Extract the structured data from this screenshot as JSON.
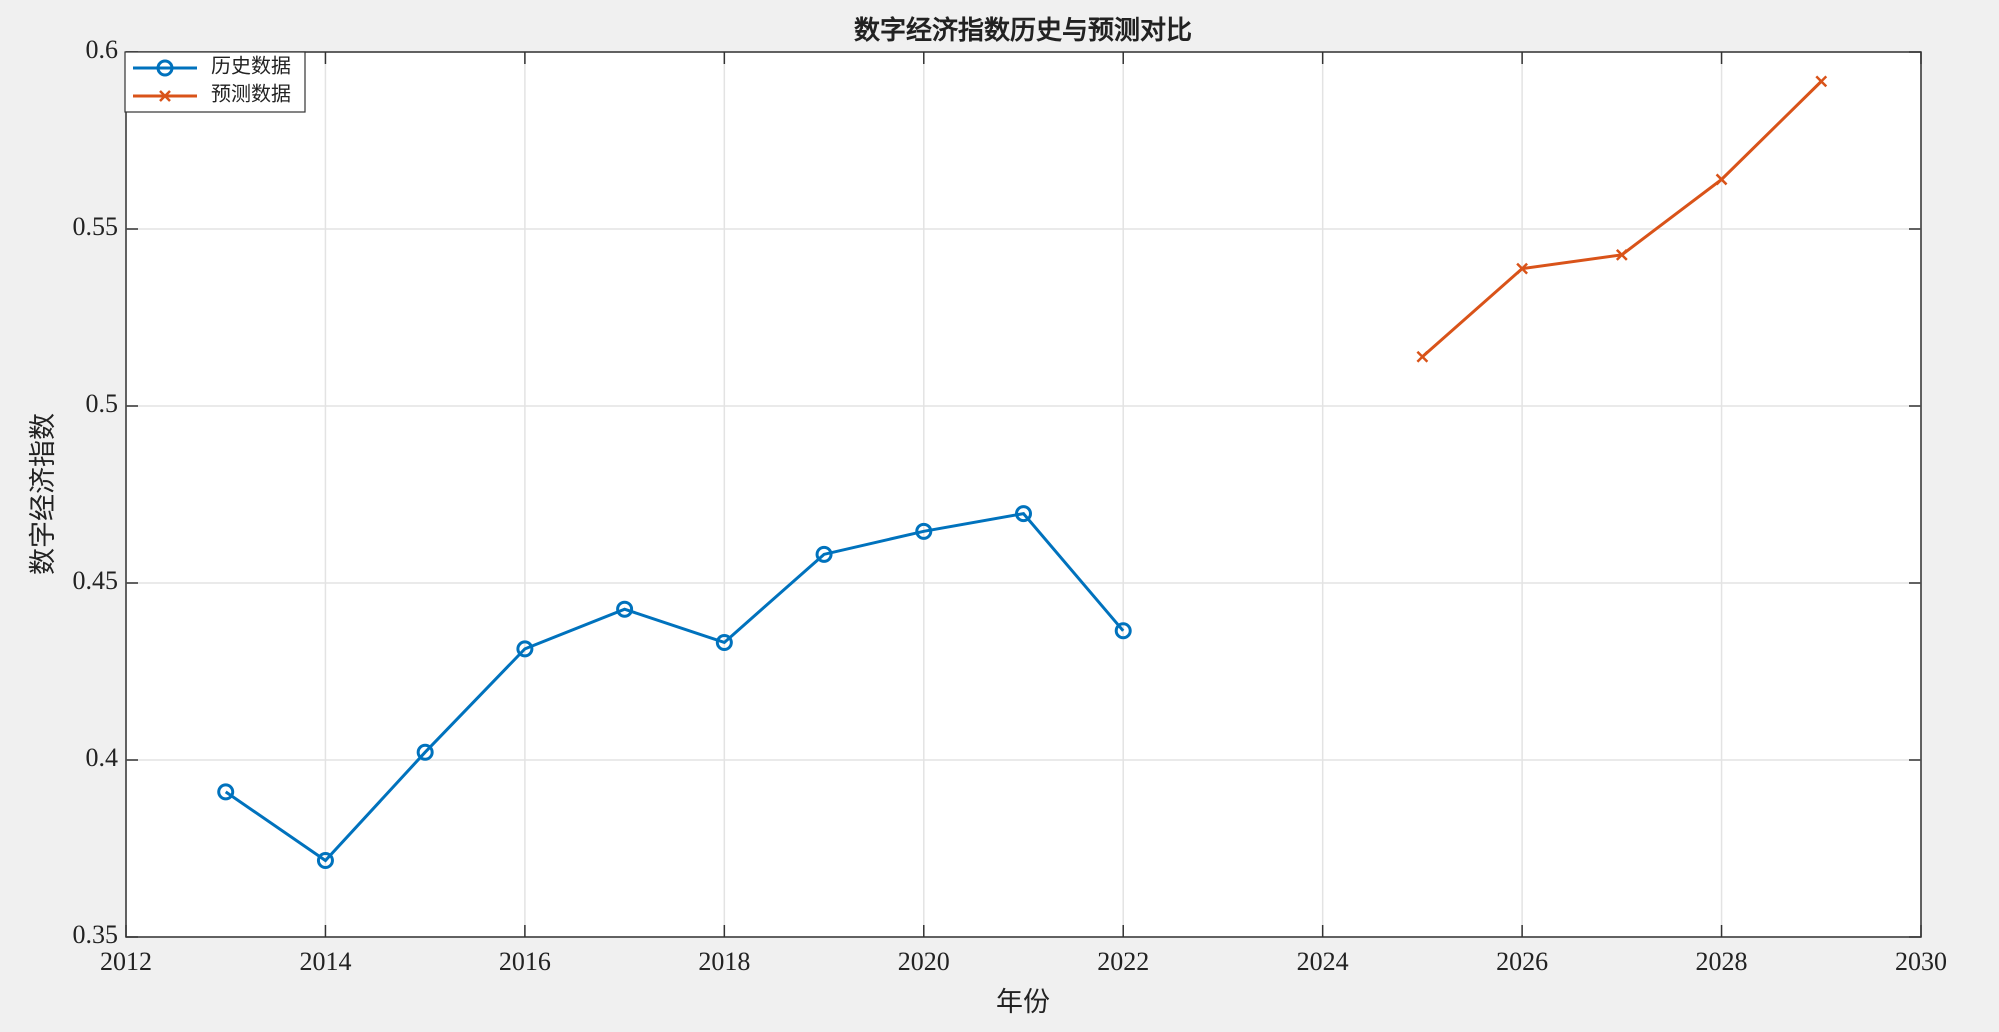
{
  "chart_data": {
    "type": "line",
    "title": "数字经济指数历史与预测对比",
    "xlabel": "年份",
    "ylabel": "数字经济指数",
    "series": [
      {
        "name": "历史数据",
        "color": "#0072bd",
        "marker": "o",
        "x": [
          2013,
          2014,
          2015,
          2016,
          2017,
          2018,
          2019,
          2020,
          2021,
          2022
        ],
        "values": [
          0.391,
          0.3716,
          0.4022,
          0.4314,
          0.4426,
          0.4332,
          0.4581,
          0.4646,
          0.4696,
          0.4365
        ]
      },
      {
        "name": "预测数据",
        "color": "#d95319",
        "marker": "x",
        "x": [
          2025,
          2026,
          2027,
          2028,
          2029
        ],
        "values": [
          0.5139,
          0.5388,
          0.5427,
          0.564,
          0.5917
        ]
      }
    ],
    "xlim": [
      2012,
      2030
    ],
    "xticks": [
      2012,
      2014,
      2016,
      2018,
      2020,
      2022,
      2024,
      2026,
      2028,
      2030
    ],
    "ylim": [
      0.35,
      0.6
    ],
    "yticks": [
      0.35,
      0.4,
      0.45,
      0.5,
      0.55,
      0.6
    ],
    "grid": true,
    "legend": "upper-left"
  }
}
